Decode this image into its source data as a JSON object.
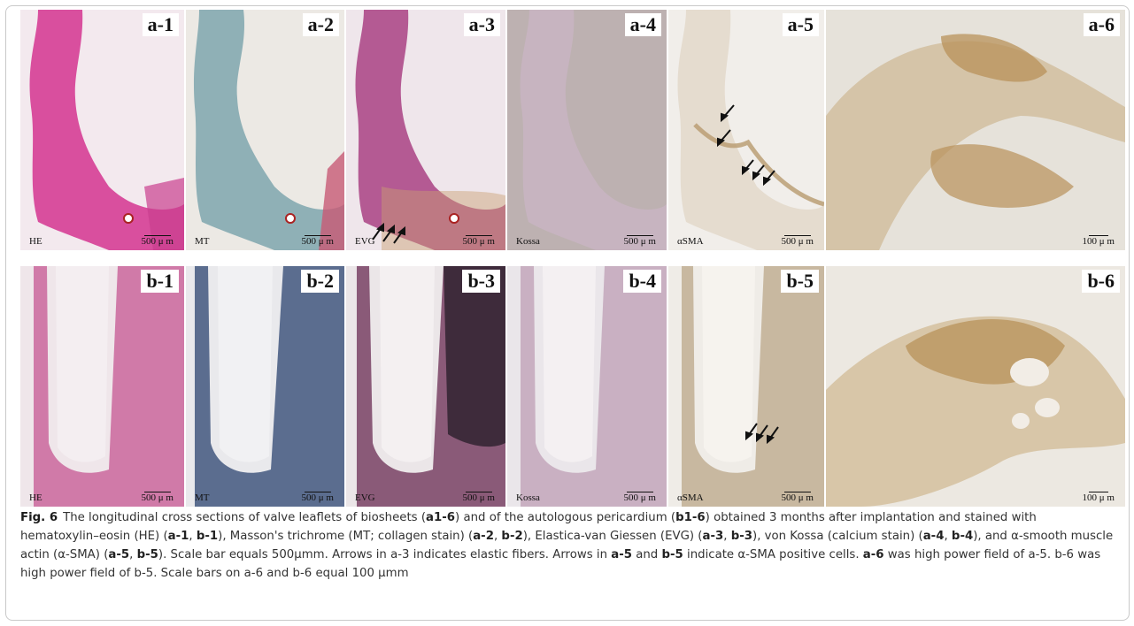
{
  "figure": {
    "label": "Fig. 6",
    "panels": [
      {
        "id": "a-1",
        "stain": "HE",
        "scale": "500 μ m"
      },
      {
        "id": "a-2",
        "stain": "MT",
        "scale": "500 μ m"
      },
      {
        "id": "a-3",
        "stain": "EVG",
        "scale": "500 μ m"
      },
      {
        "id": "a-4",
        "stain": "Kossa",
        "scale": "500 μ m"
      },
      {
        "id": "a-5",
        "stain": "αSMA",
        "scale": "500 μ m"
      },
      {
        "id": "a-6",
        "stain": "",
        "scale": "100 μ m"
      },
      {
        "id": "b-1",
        "stain": "HE",
        "scale": "500 μ m"
      },
      {
        "id": "b-2",
        "stain": "MT",
        "scale": "500 μ m"
      },
      {
        "id": "b-3",
        "stain": "EVG",
        "scale": "500 μ m"
      },
      {
        "id": "b-4",
        "stain": "Kossa",
        "scale": "500 μ m"
      },
      {
        "id": "b-5",
        "stain": "αSMA",
        "scale": "500 μ m"
      },
      {
        "id": "b-6",
        "stain": "",
        "scale": "100 μ m"
      }
    ],
    "caption": [
      {
        "t": "The longitudinal cross sections of valve leaflets of biosheets ("
      },
      {
        "t": "a1-6",
        "b": true
      },
      {
        "t": ") and of the autologous pericardium ("
      },
      {
        "t": "b1-6",
        "b": true
      },
      {
        "t": ") obtained 3 months after implantation and stained with hematoxylin–eosin (HE) ("
      },
      {
        "t": "a-1",
        "b": true
      },
      {
        "t": ", "
      },
      {
        "t": "b-1",
        "b": true
      },
      {
        "t": "), Masson's trichrome (MT; collagen stain) ("
      },
      {
        "t": "a-2",
        "b": true
      },
      {
        "t": ", "
      },
      {
        "t": "b-2",
        "b": true
      },
      {
        "t": "), Elastica-van Giessen (EVG) ("
      },
      {
        "t": "a-3",
        "b": true
      },
      {
        "t": ", "
      },
      {
        "t": "b-3",
        "b": true
      },
      {
        "t": "), von Kossa (calcium stain) ("
      },
      {
        "t": "a-4",
        "b": true
      },
      {
        "t": ", "
      },
      {
        "t": "b-4",
        "b": true
      },
      {
        "t": "), and α-smooth muscle actin (α-SMA) ("
      },
      {
        "t": "a-5",
        "b": true
      },
      {
        "t": ", "
      },
      {
        "t": "b-5",
        "b": true
      },
      {
        "t": "). Scale bar equals 500μmm. Arrows in a-3 indicates elastic fibers. Arrows in "
      },
      {
        "t": "a-5",
        "b": true
      },
      {
        "t": " and "
      },
      {
        "t": "b-5",
        "b": true
      },
      {
        "t": " indicate α-SMA positive cells. "
      },
      {
        "t": "a-6",
        "b": true
      },
      {
        "t": " was high power field of a-5. b-6 was high power field of b-5. Scale bars on a-6 and b-6 equal 100 μmm"
      }
    ],
    "colors": {
      "he": "#d94f9e",
      "mt": "#8fb0b6",
      "evg": "#b45a93",
      "kossa": "#c7b4c0",
      "asma": "#c8b8a0",
      "ihc": "#b8915a"
    }
  }
}
